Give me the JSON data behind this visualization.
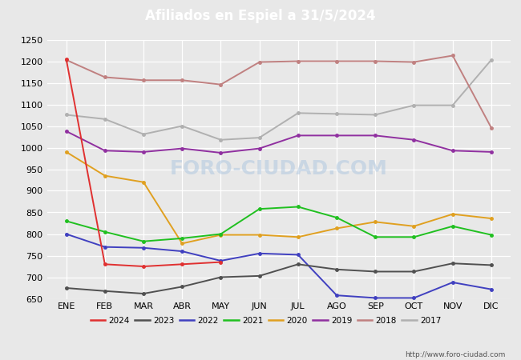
{
  "title": "Afiliados en Espiel a 31/5/2024",
  "title_color": "#ffffff",
  "title_bg_color": "#4472c4",
  "months": [
    "ENE",
    "FEB",
    "MAR",
    "ABR",
    "MAY",
    "JUN",
    "JUL",
    "AGO",
    "SEP",
    "OCT",
    "NOV",
    "DIC"
  ],
  "ylim": [
    650,
    1250
  ],
  "yticks": [
    650,
    700,
    750,
    800,
    850,
    900,
    950,
    1000,
    1050,
    1100,
    1150,
    1200,
    1250
  ],
  "series": {
    "2024": {
      "color": "#e03030",
      "data": [
        1205,
        730,
        725,
        730,
        735,
        null,
        null,
        null,
        null,
        null,
        null,
        null
      ]
    },
    "2023": {
      "color": "#505050",
      "data": [
        675,
        668,
        662,
        678,
        700,
        703,
        730,
        718,
        713,
        713,
        732,
        728
      ]
    },
    "2022": {
      "color": "#4040c0",
      "data": [
        800,
        770,
        768,
        760,
        738,
        755,
        752,
        658,
        652,
        652,
        688,
        672
      ]
    },
    "2021": {
      "color": "#20c020",
      "data": [
        830,
        805,
        783,
        790,
        800,
        858,
        863,
        838,
        793,
        793,
        818,
        798
      ]
    },
    "2020": {
      "color": "#e0a020",
      "data": [
        990,
        935,
        920,
        778,
        798,
        798,
        793,
        813,
        828,
        818,
        846,
        836
      ]
    },
    "2019": {
      "color": "#9030a0",
      "data": [
        1038,
        993,
        990,
        998,
        988,
        998,
        1028,
        1028,
        1028,
        1018,
        993,
        990
      ]
    },
    "2018": {
      "color": "#c08080",
      "data": [
        1203,
        1163,
        1156,
        1156,
        1146,
        1198,
        1200,
        1200,
        1200,
        1198,
        1213,
        1046
      ]
    },
    "2017": {
      "color": "#b0b0b0",
      "data": [
        1076,
        1066,
        1031,
        1050,
        1018,
        1023,
        1080,
        1078,
        1076,
        1098,
        1098,
        1203
      ]
    }
  },
  "watermark": "FORO-CIUDAD.COM",
  "url": "http://www.foro-ciudad.com",
  "bg_color": "#e8e8e8",
  "plot_bg_color": "#e8e8e8",
  "grid_color": "#ffffff",
  "legend_years": [
    "2024",
    "2023",
    "2022",
    "2021",
    "2020",
    "2019",
    "2018",
    "2017"
  ]
}
